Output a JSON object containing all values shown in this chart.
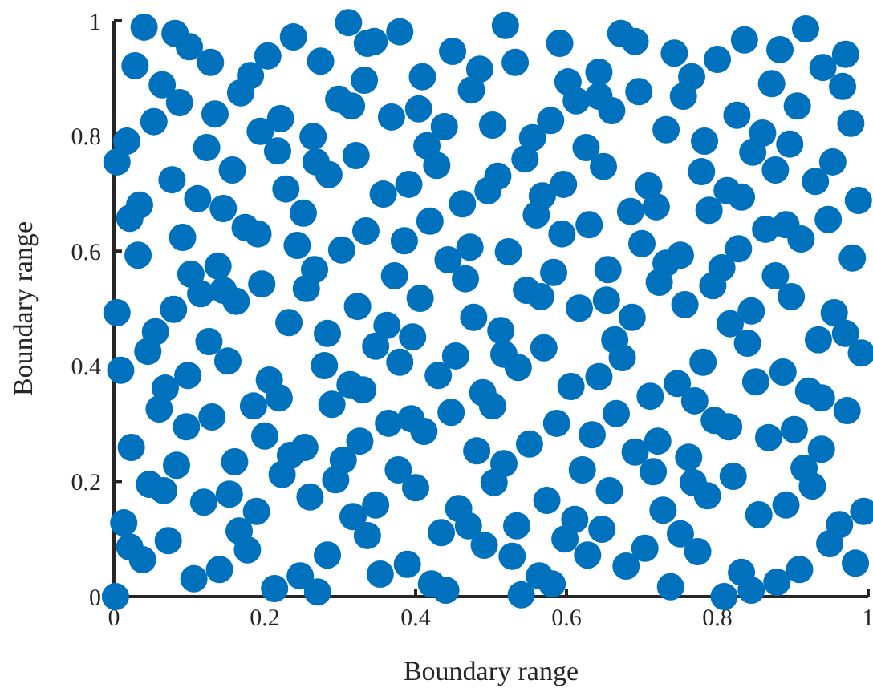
{
  "chart_data": {
    "type": "scatter",
    "xlabel": "Boundary range",
    "ylabel": "Boundary range",
    "xlim": [
      0,
      1
    ],
    "ylim": [
      0,
      1
    ],
    "xticks": [
      0,
      0.2,
      0.4,
      0.6,
      0.8,
      1
    ],
    "yticks": [
      0,
      0.2,
      0.4,
      0.6,
      0.8,
      1
    ],
    "grid": false,
    "marker": "circle",
    "series": [
      {
        "color": "#0072bd",
        "x": [
          0.04,
          0.081,
          0.1,
          0.128,
          0.028,
          0.064,
          0.087,
          0.134,
          0.053,
          0.017,
          0.004,
          0.123,
          0.157,
          0.077,
          0.111,
          0.145,
          0.034,
          0.021,
          0.174,
          0.191,
          0.091,
          0.032,
          0.102,
          0.138,
          0.115,
          0.145,
          0.162,
          0.079,
          0.004,
          0.196,
          0.168,
          0.181,
          0.204,
          0.238,
          0.194,
          0.221,
          0.217,
          0.264,
          0.268,
          0.285,
          0.228,
          0.251,
          0.243,
          0.266,
          0.255,
          0.302,
          0.321,
          0.298,
          0.315,
          0.332,
          0.274,
          0.311,
          0.336,
          0.334,
          0.323,
          0.345,
          0.379,
          0.449,
          0.519,
          0.591,
          0.672,
          0.409,
          0.485,
          0.474,
          0.532,
          0.602,
          0.643,
          0.613,
          0.643,
          0.66,
          0.368,
          0.404,
          0.438,
          0.502,
          0.579,
          0.555,
          0.545,
          0.626,
          0.649,
          0.415,
          0.428,
          0.391,
          0.357,
          0.462,
          0.509,
          0.496,
          0.568,
          0.56,
          0.596,
          0.63,
          0.594,
          0.419,
          0.385,
          0.472,
          0.443,
          0.523,
          0.466,
          0.372,
          0.583,
          0.655,
          0.406,
          0.547,
          0.566,
          0.617,
          0.653,
          0.691,
          0.743,
          0.8,
          0.836,
          0.883,
          0.917,
          0.97,
          0.94,
          0.966,
          0.766,
          0.755,
          0.696,
          0.872,
          0.906,
          0.826,
          0.732,
          0.783,
          0.86,
          0.847,
          0.896,
          0.877,
          0.977,
          0.779,
          0.709,
          0.719,
          0.685,
          0.813,
          0.832,
          0.789,
          0.953,
          0.93,
          0.987,
          0.947,
          0.864,
          0.891,
          0.911,
          0.7,
          0.751,
          0.732,
          0.828,
          0.806,
          0.723,
          0.794,
          0.877,
          0.898,
          0.979,
          0.757,
          0.845,
          0.955,
          0.687,
          0.055,
          0.045,
          0.126,
          0.151,
          0.232,
          0.283,
          0.009,
          0.068,
          0.098,
          0.06,
          0.096,
          0.13,
          0.206,
          0.219,
          0.185,
          0.279,
          0.313,
          0.33,
          0.289,
          0.023,
          0.2,
          0.083,
          0.16,
          0.234,
          0.253,
          0.223,
          0.304,
          0.294,
          0.326,
          0.047,
          0.066,
          0.119,
          0.153,
          0.26,
          0.013,
          0.189,
          0.166,
          0.177,
          0.072,
          0.021,
          0.038,
          0.317,
          0.336,
          0.283,
          0.14,
          0.106,
          0.213,
          0.247,
          0.27,
          0.002,
          0.362,
          0.396,
          0.347,
          0.379,
          0.477,
          0.513,
          0.453,
          0.43,
          0.517,
          0.536,
          0.57,
          0.664,
          0.674,
          0.643,
          0.606,
          0.489,
          0.502,
          0.447,
          0.364,
          0.394,
          0.411,
          0.587,
          0.634,
          0.666,
          0.481,
          0.551,
          0.517,
          0.504,
          0.377,
          0.4,
          0.621,
          0.657,
          0.347,
          0.457,
          0.47,
          0.434,
          0.491,
          0.534,
          0.574,
          0.611,
          0.598,
          0.647,
          0.628,
          0.528,
          0.353,
          0.389,
          0.421,
          0.44,
          0.54,
          0.564,
          0.581,
          0.679,
          0.817,
          0.84,
          0.97,
          0.934,
          0.991,
          0.781,
          0.747,
          0.711,
          0.77,
          0.851,
          0.887,
          0.921,
          0.938,
          0.972,
          0.796,
          0.815,
          0.868,
          0.902,
          0.938,
          0.721,
          0.691,
          0.715,
          0.762,
          0.768,
          0.787,
          0.821,
          0.915,
          0.926,
          0.728,
          0.855,
          0.891,
          0.994,
          0.962,
          0.949,
          0.751,
          0.704,
          0.774,
          0.983,
          0.738,
          0.832,
          0.845,
          0.809,
          0.879,
          0.909
        ],
        "values": [
          0.989,
          0.978,
          0.955,
          0.928,
          0.922,
          0.889,
          0.858,
          0.838,
          0.825,
          0.791,
          0.755,
          0.78,
          0.741,
          0.724,
          0.691,
          0.674,
          0.68,
          0.657,
          0.641,
          0.63,
          0.624,
          0.593,
          0.56,
          0.574,
          0.526,
          0.532,
          0.513,
          0.499,
          0.493,
          0.543,
          0.875,
          0.905,
          0.939,
          0.972,
          0.808,
          0.83,
          0.774,
          0.799,
          0.755,
          0.733,
          0.708,
          0.666,
          0.61,
          0.568,
          0.535,
          0.602,
          0.766,
          0.864,
          0.852,
          0.897,
          0.93,
          0.997,
          0.961,
          0.635,
          0.504,
          0.964,
          0.981,
          0.947,
          0.992,
          0.961,
          0.978,
          0.903,
          0.916,
          0.88,
          0.928,
          0.894,
          0.911,
          0.861,
          0.869,
          0.844,
          0.833,
          0.847,
          0.816,
          0.819,
          0.827,
          0.797,
          0.76,
          0.78,
          0.747,
          0.783,
          0.749,
          0.716,
          0.699,
          0.682,
          0.73,
          0.705,
          0.696,
          0.663,
          0.716,
          0.646,
          0.63,
          0.652,
          0.618,
          0.607,
          0.585,
          0.599,
          0.552,
          0.557,
          0.563,
          0.568,
          0.518,
          0.532,
          0.521,
          0.501,
          0.515,
          0.964,
          0.944,
          0.933,
          0.967,
          0.95,
          0.986,
          0.942,
          0.919,
          0.886,
          0.903,
          0.869,
          0.877,
          0.891,
          0.852,
          0.836,
          0.811,
          0.791,
          0.805,
          0.772,
          0.786,
          0.741,
          0.822,
          0.738,
          0.713,
          0.677,
          0.669,
          0.705,
          0.694,
          0.671,
          0.755,
          0.721,
          0.688,
          0.655,
          0.638,
          0.646,
          0.621,
          0.613,
          0.593,
          0.579,
          0.604,
          0.571,
          0.546,
          0.54,
          0.557,
          0.521,
          0.588,
          0.507,
          0.496,
          0.493,
          0.485,
          0.46,
          0.426,
          0.443,
          0.409,
          0.476,
          0.457,
          0.393,
          0.362,
          0.384,
          0.326,
          0.295,
          0.312,
          0.376,
          0.345,
          0.331,
          0.401,
          0.368,
          0.359,
          0.334,
          0.259,
          0.279,
          0.228,
          0.234,
          0.245,
          0.259,
          0.212,
          0.237,
          0.203,
          0.27,
          0.195,
          0.184,
          0.164,
          0.178,
          0.173,
          0.128,
          0.148,
          0.114,
          0.081,
          0.097,
          0.086,
          0.064,
          0.139,
          0.106,
          0.072,
          0.047,
          0.031,
          0.014,
          0.036,
          0.008,
          0,
          0.471,
          0.451,
          0.435,
          0.407,
          0.485,
          0.462,
          0.418,
          0.384,
          0.421,
          0.398,
          0.432,
          0.446,
          0.415,
          0.382,
          0.365,
          0.354,
          0.331,
          0.32,
          0.301,
          0.309,
          0.287,
          0.301,
          0.281,
          0.318,
          0.253,
          0.265,
          0.231,
          0.198,
          0.22,
          0.189,
          0.22,
          0.184,
          0.159,
          0.153,
          0.123,
          0.111,
          0.089,
          0.123,
          0.167,
          0.134,
          0.1,
          0.117,
          0.072,
          0.07,
          0.039,
          0.056,
          0.022,
          0.011,
          0.003,
          0.036,
          0.022,
          0.053,
          0.474,
          0.44,
          0.457,
          0.446,
          0.423,
          0.407,
          0.37,
          0.348,
          0.34,
          0.373,
          0.39,
          0.357,
          0.345,
          0.323,
          0.306,
          0.295,
          0.276,
          0.29,
          0.256,
          0.27,
          0.251,
          0.217,
          0.242,
          0.198,
          0.175,
          0.209,
          0.223,
          0.192,
          0.15,
          0.142,
          0.159,
          0.148,
          0.125,
          0.092,
          0.109,
          0.084,
          0.078,
          0.058,
          0.017,
          0.042,
          0.011,
          0,
          0.025,
          0.047
        ]
      }
    ]
  }
}
